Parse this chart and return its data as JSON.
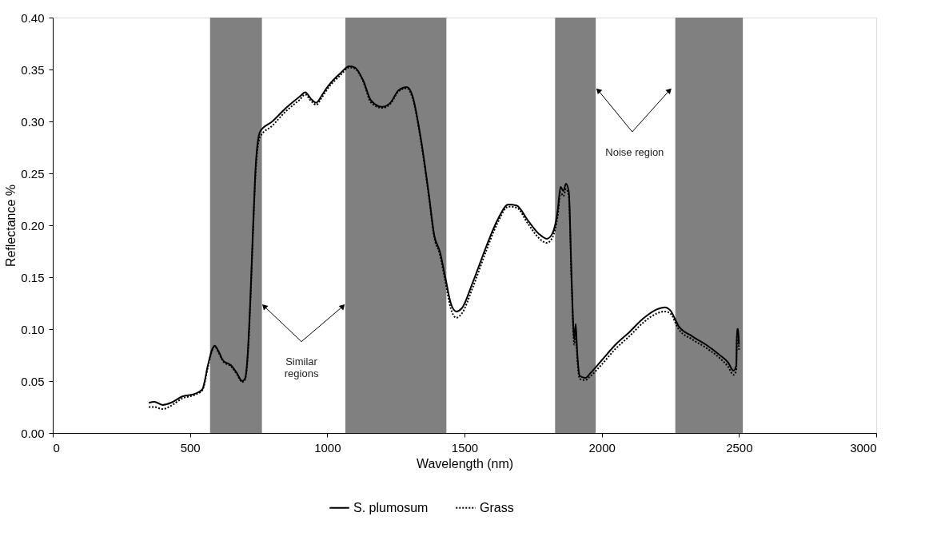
{
  "chart_data": {
    "type": "line",
    "xlabel": "Wavelength  (nm)",
    "ylabel": "Reflectance %",
    "xlim": [
      0,
      3000
    ],
    "xticks": [
      0,
      500,
      1000,
      1500,
      2000,
      2500,
      3000
    ],
    "ylim": [
      0,
      0.4
    ],
    "yticks": [
      {
        "value": 0,
        "label": "0.00"
      },
      {
        "value": 0.05,
        "label": "0.05"
      },
      {
        "value": 0.1,
        "label": "0.10"
      },
      {
        "value": 0.15,
        "label": "0.15"
      },
      {
        "value": 0.2,
        "label": "0.20"
      },
      {
        "value": 0.25,
        "label": "0.25"
      },
      {
        "value": 0.3,
        "label": "0.30"
      },
      {
        "value": 0.35,
        "label": "0.35"
      },
      {
        "value": 0.4,
        "label": "0.40"
      }
    ],
    "grid": false,
    "legend": "bottom",
    "marker": "none",
    "bands": [
      {
        "axis": "x",
        "from": 573,
        "to": 762,
        "color": "#808080"
      },
      {
        "axis": "x",
        "from": 1066,
        "to": 1434,
        "color": "#808080"
      },
      {
        "axis": "x",
        "from": 1830,
        "to": 1978,
        "color": "#808080"
      },
      {
        "axis": "x",
        "from": 2268,
        "to": 2514,
        "color": "#808080"
      }
    ],
    "annotations": [
      "Similar regions",
      "Noise region"
    ],
    "series": [
      {
        "name": "S. plumosum",
        "color": "#000000",
        "line_style": "solid",
        "x": [
          350,
          370,
          400,
          430,
          470,
          520,
          545,
          565,
          580,
          590,
          605,
          620,
          650,
          670,
          690,
          700,
          710,
          720,
          730,
          740,
          755,
          800,
          850,
          900,
          920,
          940,
          960,
          980,
          1000,
          1050,
          1080,
          1100,
          1130,
          1160,
          1200,
          1230,
          1260,
          1290,
          1310,
          1340,
          1370,
          1390,
          1410,
          1430,
          1450,
          1470,
          1490,
          1530,
          1580,
          1620,
          1660,
          1690,
          1730,
          1770,
          1800,
          1820,
          1840,
          1850,
          1860,
          1870,
          1880,
          1890,
          1900,
          1905,
          1910,
          1920,
          1940,
          1960,
          2000,
          2050,
          2100,
          2150,
          2200,
          2230,
          2250,
          2280,
          2330,
          2380,
          2430,
          2460,
          2480,
          2490,
          2493,
          2497,
          2500
        ],
        "values": [
          0.029,
          0.03,
          0.027,
          0.029,
          0.035,
          0.038,
          0.042,
          0.065,
          0.08,
          0.084,
          0.078,
          0.07,
          0.065,
          0.058,
          0.05,
          0.052,
          0.075,
          0.13,
          0.2,
          0.26,
          0.29,
          0.3,
          0.313,
          0.324,
          0.328,
          0.322,
          0.318,
          0.325,
          0.333,
          0.347,
          0.353,
          0.352,
          0.34,
          0.32,
          0.314,
          0.318,
          0.33,
          0.333,
          0.325,
          0.285,
          0.23,
          0.19,
          0.175,
          0.15,
          0.125,
          0.117,
          0.12,
          0.145,
          0.18,
          0.205,
          0.22,
          0.219,
          0.205,
          0.192,
          0.187,
          0.192,
          0.215,
          0.237,
          0.233,
          0.24,
          0.232,
          0.15,
          0.09,
          0.105,
          0.08,
          0.055,
          0.053,
          0.058,
          0.07,
          0.085,
          0.097,
          0.11,
          0.119,
          0.121,
          0.118,
          0.103,
          0.093,
          0.085,
          0.075,
          0.068,
          0.06,
          0.065,
          0.1,
          0.1,
          0.085
        ]
      },
      {
        "name": "Grass",
        "color": "#000000",
        "line_style": "dotted",
        "x": [
          350,
          370,
          400,
          430,
          470,
          520,
          545,
          565,
          580,
          590,
          605,
          620,
          650,
          670,
          690,
          700,
          710,
          720,
          730,
          740,
          755,
          800,
          850,
          900,
          920,
          940,
          960,
          980,
          1000,
          1050,
          1080,
          1100,
          1130,
          1160,
          1200,
          1230,
          1260,
          1290,
          1310,
          1340,
          1370,
          1390,
          1410,
          1430,
          1450,
          1470,
          1490,
          1530,
          1580,
          1620,
          1660,
          1690,
          1730,
          1770,
          1800,
          1820,
          1840,
          1850,
          1860,
          1870,
          1880,
          1890,
          1900,
          1905,
          1910,
          1920,
          1940,
          1960,
          2000,
          2050,
          2100,
          2150,
          2200,
          2230,
          2250,
          2280,
          2330,
          2380,
          2430,
          2460,
          2480,
          2490,
          2493,
          2497,
          2500
        ],
        "values": [
          0.025,
          0.025,
          0.023,
          0.026,
          0.033,
          0.037,
          0.041,
          0.063,
          0.079,
          0.083,
          0.077,
          0.069,
          0.064,
          0.057,
          0.049,
          0.051,
          0.072,
          0.125,
          0.195,
          0.255,
          0.285,
          0.296,
          0.31,
          0.321,
          0.326,
          0.32,
          0.316,
          0.323,
          0.331,
          0.345,
          0.352,
          0.351,
          0.339,
          0.318,
          0.313,
          0.317,
          0.329,
          0.332,
          0.323,
          0.283,
          0.228,
          0.188,
          0.172,
          0.146,
          0.12,
          0.111,
          0.115,
          0.14,
          0.176,
          0.202,
          0.218,
          0.217,
          0.202,
          0.188,
          0.183,
          0.188,
          0.21,
          0.232,
          0.228,
          0.235,
          0.228,
          0.145,
          0.085,
          0.1,
          0.075,
          0.052,
          0.051,
          0.055,
          0.066,
          0.081,
          0.093,
          0.106,
          0.115,
          0.117,
          0.115,
          0.1,
          0.09,
          0.082,
          0.072,
          0.064,
          0.056,
          0.06,
          0.095,
          0.095,
          0.08
        ]
      }
    ]
  }
}
